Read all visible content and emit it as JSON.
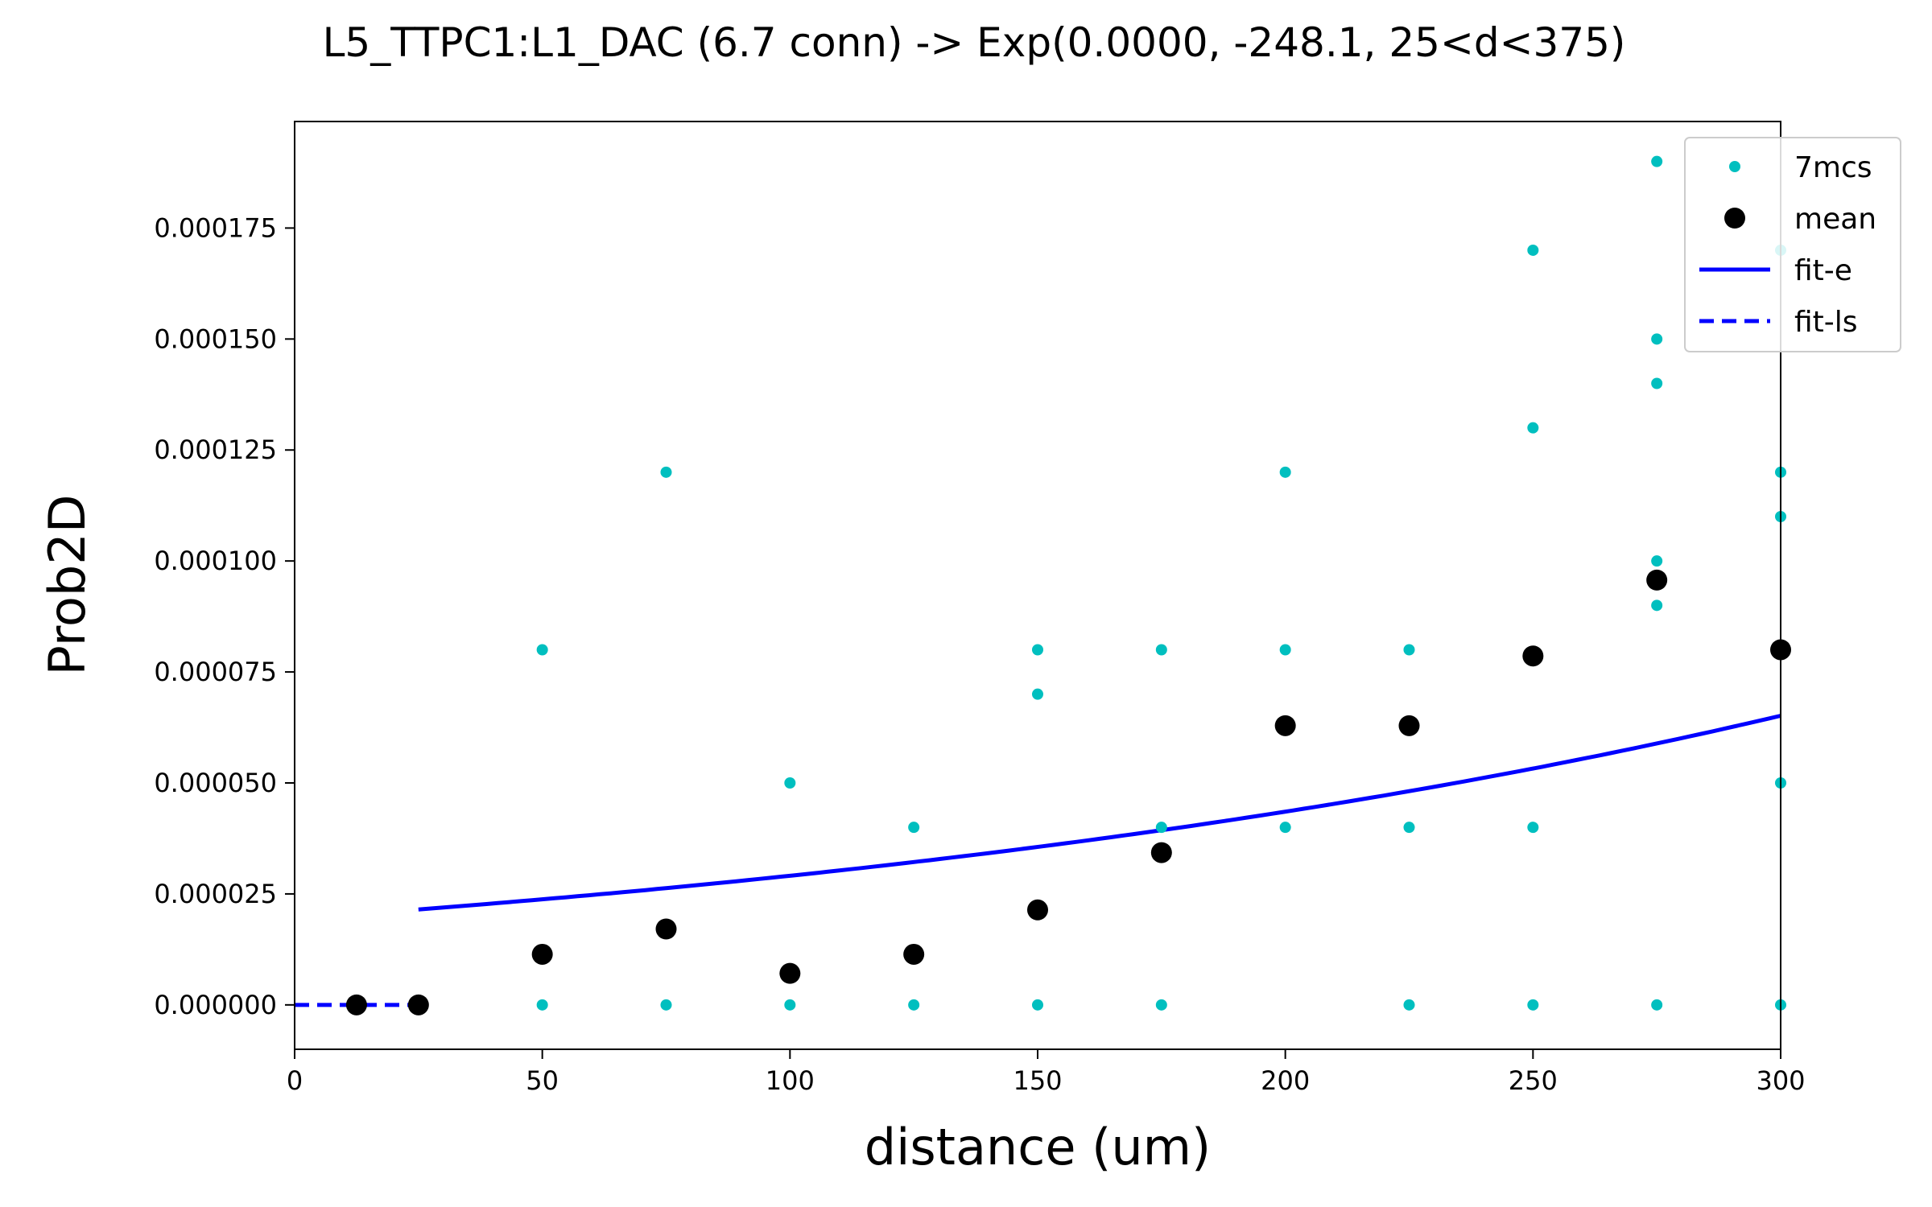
{
  "chart_data": {
    "type": "scatter",
    "title": "L5_TTPC1:L1_DAC (6.7 conn) -> Exp(0.0000, -248.1, 25<d<375)",
    "xlabel": "distance (um)",
    "ylabel": "Prob2D",
    "xlim": [
      0,
      300
    ],
    "ylim": [
      -1e-05,
      0.000199
    ],
    "x_ticks": [
      0,
      50,
      100,
      150,
      200,
      250,
      300
    ],
    "x_tick_labels": [
      "0",
      "50",
      "100",
      "150",
      "200",
      "250",
      "300"
    ],
    "y_ticks": [
      0,
      2.5e-05,
      5e-05,
      7.5e-05,
      0.0001,
      0.000125,
      0.00015,
      0.000175
    ],
    "y_tick_labels": [
      "0.000000",
      "0.000025",
      "0.000050",
      "0.000075",
      "0.000100",
      "0.000125",
      "0.000150",
      "0.000175"
    ],
    "grid": false,
    "legend_position": "top-right",
    "colors": {
      "samples": "#00bfbf",
      "mean": "#000000",
      "fit": "#0000ff"
    },
    "series": [
      {
        "name": "7mcs",
        "kind": "points",
        "points": [
          [
            50,
            0
          ],
          [
            50,
            8e-05
          ],
          [
            75,
            0
          ],
          [
            75,
            0.00012
          ],
          [
            100,
            0
          ],
          [
            100,
            5e-05
          ],
          [
            125,
            0
          ],
          [
            125,
            4e-05
          ],
          [
            150,
            0
          ],
          [
            150,
            7e-05
          ],
          [
            150,
            8e-05
          ],
          [
            175,
            0
          ],
          [
            175,
            4e-05
          ],
          [
            175,
            8e-05
          ],
          [
            200,
            4e-05
          ],
          [
            200,
            8e-05
          ],
          [
            200,
            0.00012
          ],
          [
            225,
            0
          ],
          [
            225,
            4e-05
          ],
          [
            225,
            8e-05
          ],
          [
            250,
            0
          ],
          [
            250,
            4e-05
          ],
          [
            250,
            0.00013
          ],
          [
            250,
            0.00017
          ],
          [
            275,
            0
          ],
          [
            275,
            9e-05
          ],
          [
            275,
            0.0001
          ],
          [
            275,
            0.00014
          ],
          [
            275,
            0.00015
          ],
          [
            275,
            0.00019
          ],
          [
            300,
            0
          ],
          [
            300,
            5e-05
          ],
          [
            300,
            0.00011
          ],
          [
            300,
            0.00012
          ],
          [
            300,
            0.00017
          ]
        ]
      },
      {
        "name": "mean",
        "kind": "points",
        "points": [
          [
            12.5,
            0
          ],
          [
            25,
            0
          ],
          [
            50,
            1.14e-05
          ],
          [
            75,
            1.71e-05
          ],
          [
            100,
            7.1e-06
          ],
          [
            125,
            1.14e-05
          ],
          [
            150,
            2.14e-05
          ],
          [
            175,
            3.43e-05
          ],
          [
            200,
            6.29e-05
          ],
          [
            225,
            6.29e-05
          ],
          [
            250,
            7.86e-05
          ],
          [
            275,
            9.57e-05
          ],
          [
            300,
            8e-05
          ]
        ]
      },
      {
        "name": "fit-e",
        "kind": "line",
        "x_range": [
          25,
          300
        ],
        "model": {
          "y0": 2.15e-05,
          "scale": 248.1,
          "x0": 25
        }
      },
      {
        "name": "fit-ls",
        "kind": "dashed",
        "points": [
          [
            0,
            0
          ],
          [
            25,
            0
          ]
        ]
      }
    ],
    "legend": [
      {
        "label": "7mcs",
        "marker": "small-dot"
      },
      {
        "label": "mean",
        "marker": "large-dot"
      },
      {
        "label": "fit-e",
        "marker": "solid-line"
      },
      {
        "label": "fit-ls",
        "marker": "dashed-line"
      }
    ]
  }
}
